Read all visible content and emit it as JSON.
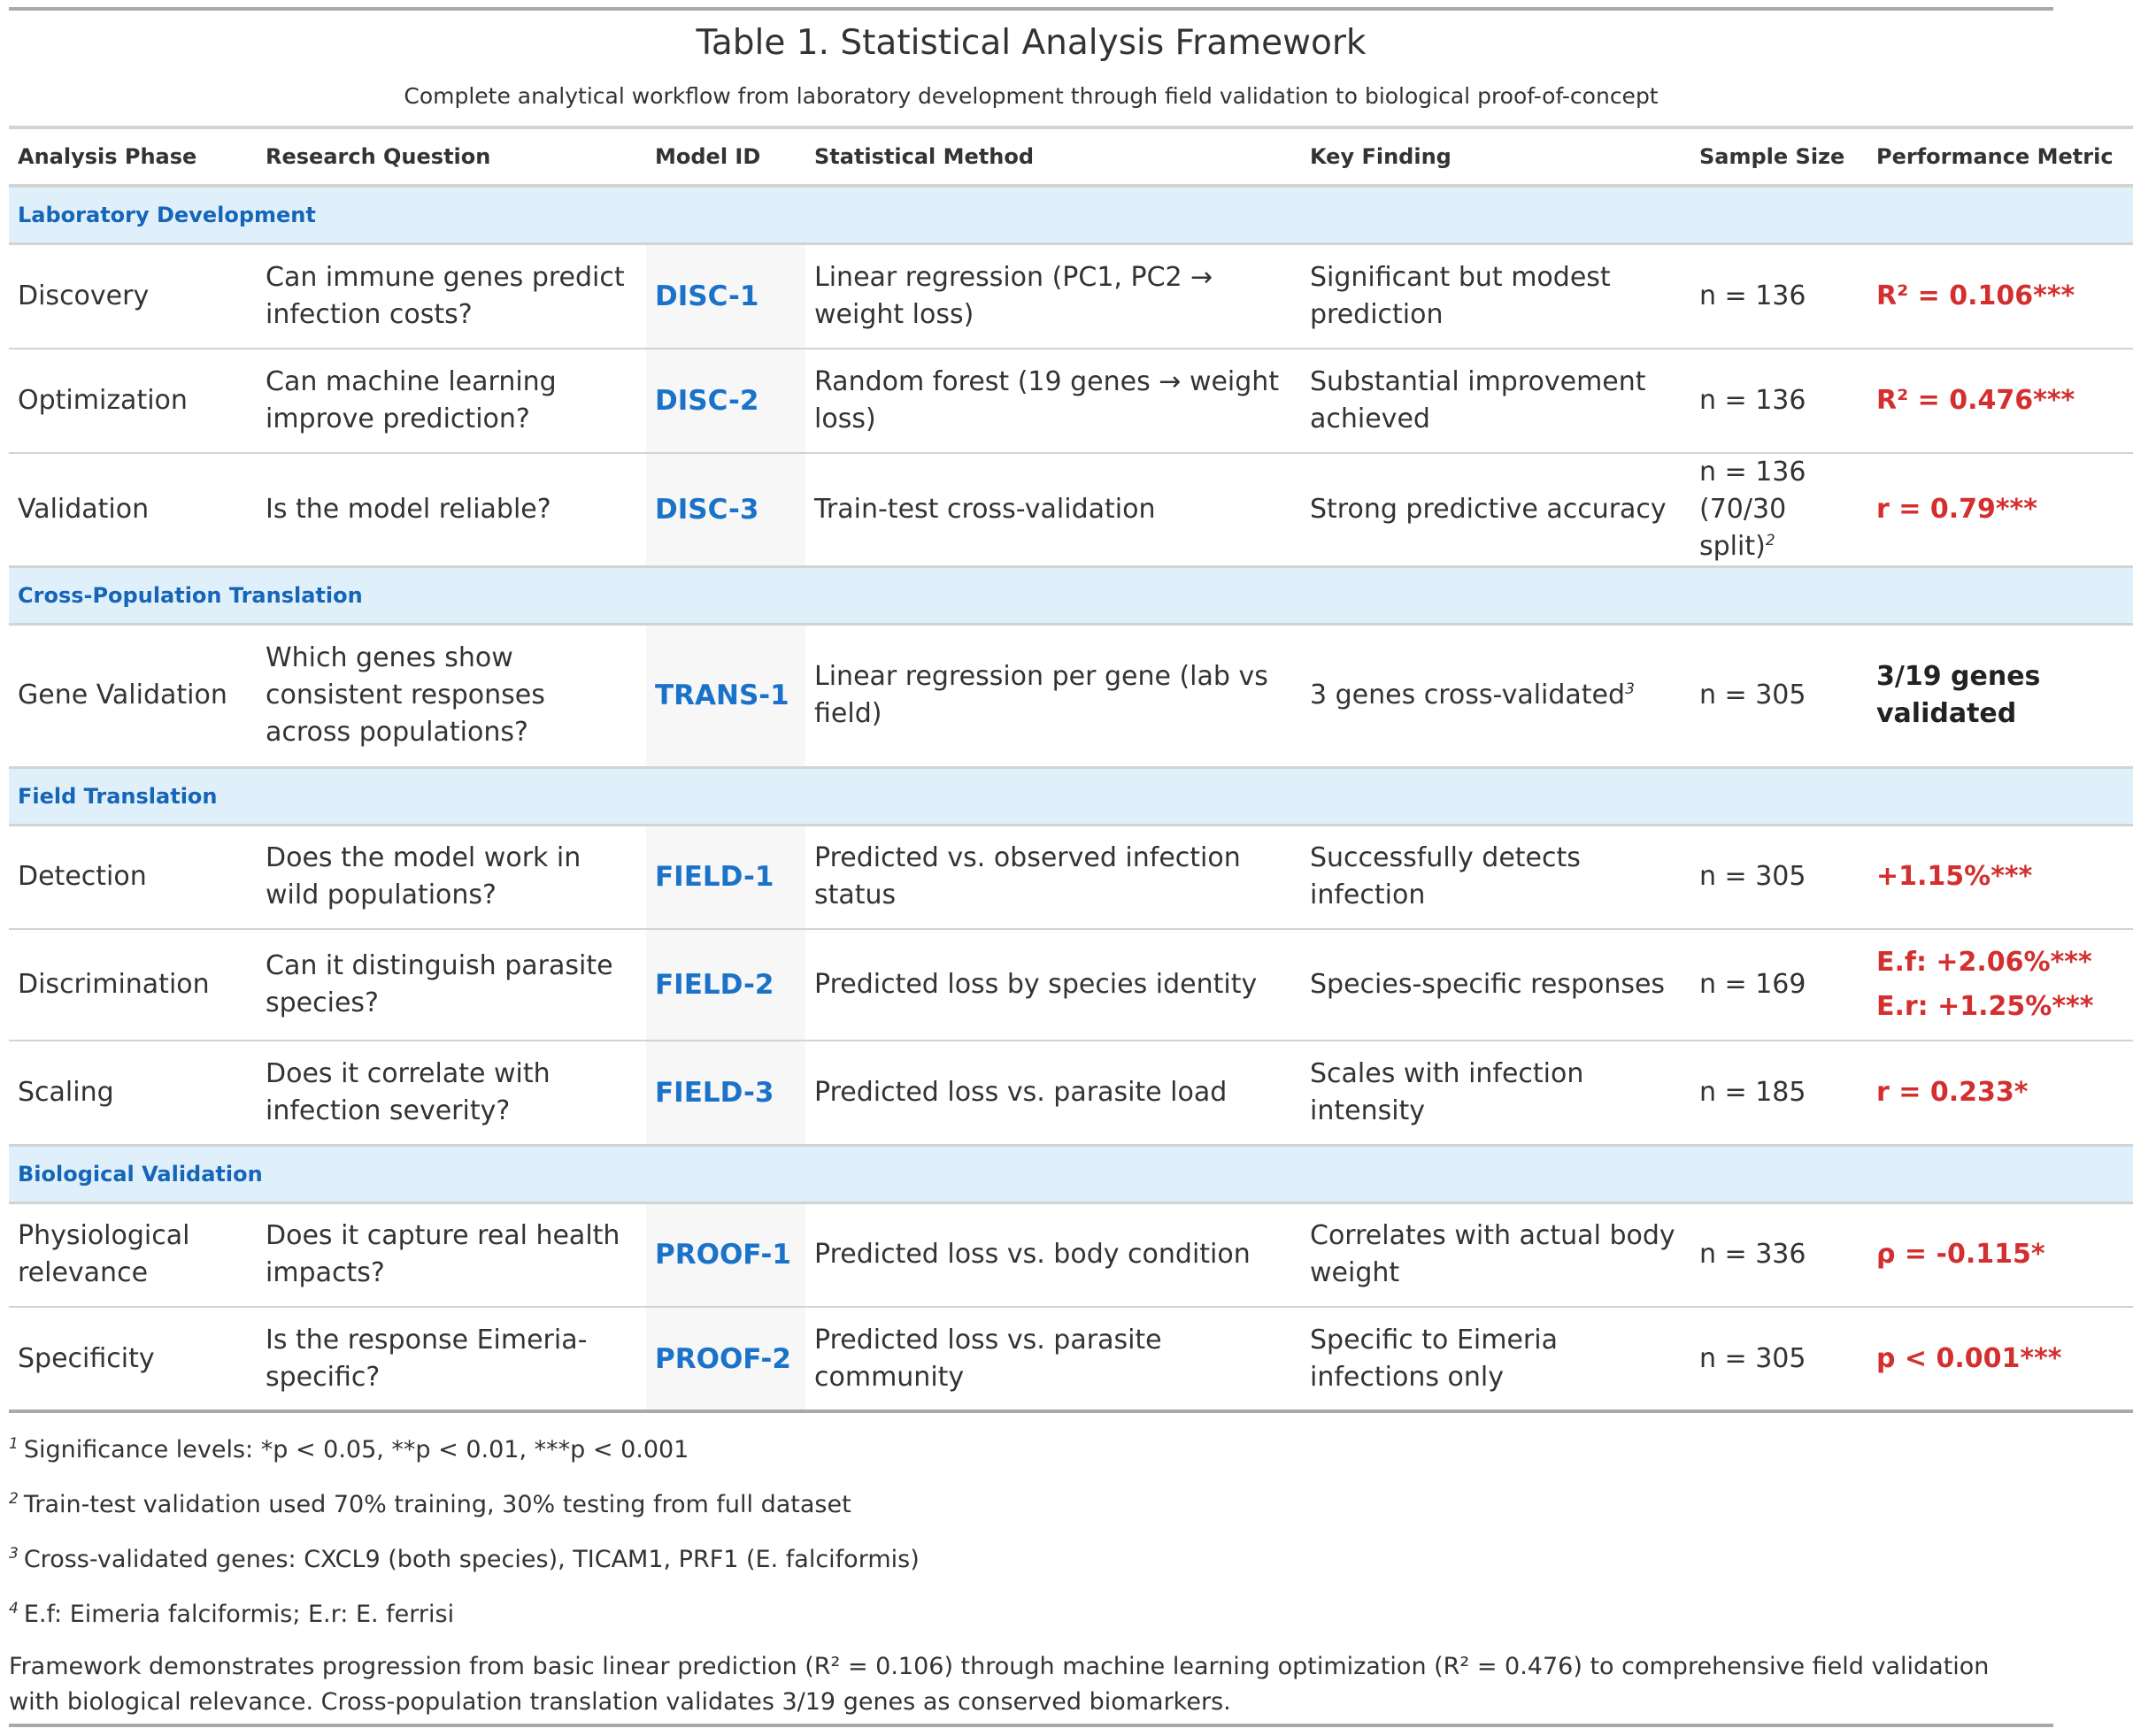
{
  "table": {
    "title": "Table 1. Statistical Analysis Framework",
    "subtitle": "Complete analytical workflow from laboratory development through field validation to biological proof-of-concept",
    "headers": [
      "Analysis Phase",
      "Research Question",
      "Model ID",
      "Statistical Method",
      "Key Finding",
      "Sample Size",
      "Performance Metric"
    ],
    "groups": [
      {
        "label": "Laboratory Development",
        "rows": [
          {
            "phase": "Discovery",
            "question": "Can immune genes predict infection costs?",
            "model": "DISC-1",
            "method": "Linear regression (PC1, PC2 → weight loss)",
            "finding": "Significant but modest prediction",
            "finding_note": "",
            "sample": "n = 136",
            "sample_extra": "",
            "sample_note": "",
            "perf": "R² = 0.106***",
            "perf2": ""
          },
          {
            "phase": "Optimization",
            "question": "Can machine learning improve prediction?",
            "model": "DISC-2",
            "method": "Random forest (19 genes → weight loss)",
            "finding": "Substantial improvement achieved",
            "finding_note": "",
            "sample": "n = 136",
            "sample_extra": "",
            "sample_note": "",
            "perf": "R² = 0.476***",
            "perf2": ""
          },
          {
            "phase": "Validation",
            "question": "Is the model reliable?",
            "model": "DISC-3",
            "method": "Train-test cross-validation",
            "finding": "Strong predictive accuracy",
            "finding_note": "",
            "sample": "n = 136",
            "sample_extra": "(70/30 split)",
            "sample_note": "2",
            "perf": "r = 0.79***",
            "perf2": ""
          }
        ]
      },
      {
        "label": "Cross-Population Translation",
        "rows": [
          {
            "phase": "Gene Validation",
            "question": "Which genes show consistent responses across populations?",
            "model": "TRANS-1",
            "method": "Linear regression per gene (lab vs field)",
            "finding": "3 genes cross-validated",
            "finding_note": "3",
            "sample": "n = 305",
            "sample_extra": "",
            "sample_note": "",
            "perf": "3/19 genes validated",
            "perf2": ""
          }
        ]
      },
      {
        "label": "Field Translation",
        "rows": [
          {
            "phase": "Detection",
            "question": "Does the model work in wild populations?",
            "model": "FIELD-1",
            "method": "Predicted vs. observed infection status",
            "finding": "Successfully detects infection",
            "finding_note": "",
            "sample": "n = 305",
            "sample_extra": "",
            "sample_note": "",
            "perf": "+1.15%***",
            "perf2": ""
          },
          {
            "phase": "Discrimination",
            "question": "Can it distinguish parasite species?",
            "model": "FIELD-2",
            "method": "Predicted loss by species identity",
            "finding": "Species-specific responses",
            "finding_note": "",
            "sample": "n = 169",
            "sample_extra": "",
            "sample_note": "",
            "perf": "E.f: +2.06%***",
            "perf2": "E.r: +1.25%***"
          },
          {
            "phase": "Scaling",
            "question": "Does it correlate with infection severity?",
            "model": "FIELD-3",
            "method": "Predicted loss vs. parasite load",
            "finding": "Scales with infection intensity",
            "finding_note": "",
            "sample": "n = 185",
            "sample_extra": "",
            "sample_note": "",
            "perf": "r = 0.233*",
            "perf2": ""
          }
        ]
      },
      {
        "label": "Biological Validation",
        "rows": [
          {
            "phase": "Physiological relevance",
            "question": "Does it capture real health impacts?",
            "model": "PROOF-1",
            "method": "Predicted loss vs. body condition",
            "finding": "Correlates with actual body weight",
            "finding_note": "",
            "sample": "n = 336",
            "sample_extra": "",
            "sample_note": "",
            "perf": "ρ = -0.115*",
            "perf2": ""
          },
          {
            "phase": "Specificity",
            "question": "Is the response Eimeria-specific?",
            "model": "PROOF-2",
            "method": "Predicted loss vs. parasite community",
            "finding": "Specific to Eimeria infections only",
            "finding_note": "",
            "sample": "n = 305",
            "sample_extra": "",
            "sample_note": "",
            "perf": "p < 0.001***",
            "perf2": ""
          }
        ]
      }
    ],
    "footnotes": [
      {
        "mark": "1",
        "text": "Significance levels: *p < 0.05, **p < 0.01, ***p < 0.001"
      },
      {
        "mark": "2",
        "text": "Train-test validation used 70% training, 30% testing from full dataset"
      },
      {
        "mark": "3",
        "text": "Cross-validated genes: CXCL9 (both species), TICAM1, PRF1 (E. falciformis)"
      },
      {
        "mark": "4",
        "text": "E.f: Eimeria falciformis; E.r: E. ferrisi"
      }
    ],
    "source_note": "Framework demonstrates progression from basic linear prediction (R² = 0.106) through machine learning optimization (R² = 0.476) to comprehensive field validation with biological relevance. Cross-population translation validates 3/19 genes as conserved biomarkers."
  },
  "colors": {
    "group_bg": "#e0f0fa",
    "group_text": "#1565b8",
    "model_text": "#1a72c9",
    "metric_red": "#d32f2f"
  }
}
